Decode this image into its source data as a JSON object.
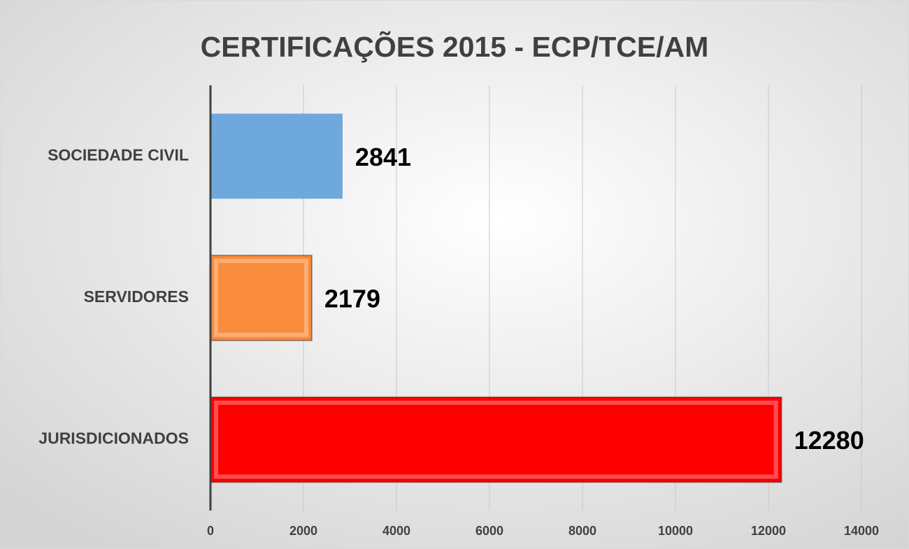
{
  "chart_data": {
    "type": "bar",
    "orientation": "horizontal",
    "title": "CERTIFICAÇÕES 2015 - ECP/TCE/AM",
    "categories": [
      "SOCIEDADE CIVIL",
      "SERVIDORES",
      "JURISDICIONADOS"
    ],
    "values": [
      2841,
      2179,
      12280
    ],
    "colors": [
      "#6fa8dc",
      "#f98b3c",
      "#ff0000"
    ],
    "xlim": [
      0,
      14000
    ],
    "xticks": [
      0,
      2000,
      4000,
      6000,
      8000,
      10000,
      12000,
      14000
    ],
    "grid": true
  }
}
